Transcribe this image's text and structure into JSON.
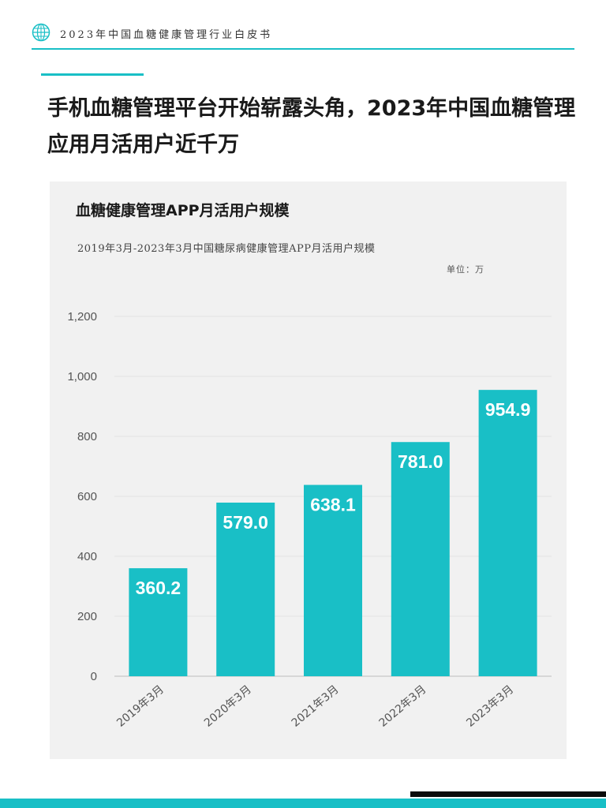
{
  "header": {
    "title": "2023年中国血糖健康管理行业白皮书",
    "logo_icon": "globe-icon"
  },
  "page": {
    "title": "手机血糖管理平台开始崭露头角，2023年中国血糖管理应用月活用户近千万"
  },
  "chart": {
    "heading": "血糖健康管理APP月活用户规模",
    "subtitle": "2019年3月-2023年3月中国糖尿病健康管理APP月活用户规模",
    "unit": "单位：万"
  },
  "colors": {
    "accent": "#19bfc6",
    "panel_bg": "#f1f1f1",
    "footer_dark": "#0b0b0b"
  },
  "chart_data": {
    "type": "bar",
    "categories": [
      "2019年3月",
      "2020年3月",
      "2021年3月",
      "2022年3月",
      "2023年3月"
    ],
    "values": [
      360.2,
      579.0,
      638.1,
      781.0,
      954.9
    ],
    "value_labels": [
      "360.2",
      "579.0",
      "638.1",
      "781.0",
      "954.9"
    ],
    "ylim": [
      0,
      1200
    ],
    "yticks": [
      0,
      200,
      400,
      600,
      800,
      1000,
      1200
    ],
    "ytick_labels": [
      "0",
      "200",
      "400",
      "600",
      "800",
      "1,000",
      "1,200"
    ],
    "bar_color": "#19bfc6",
    "grid": true,
    "legend": "none"
  }
}
